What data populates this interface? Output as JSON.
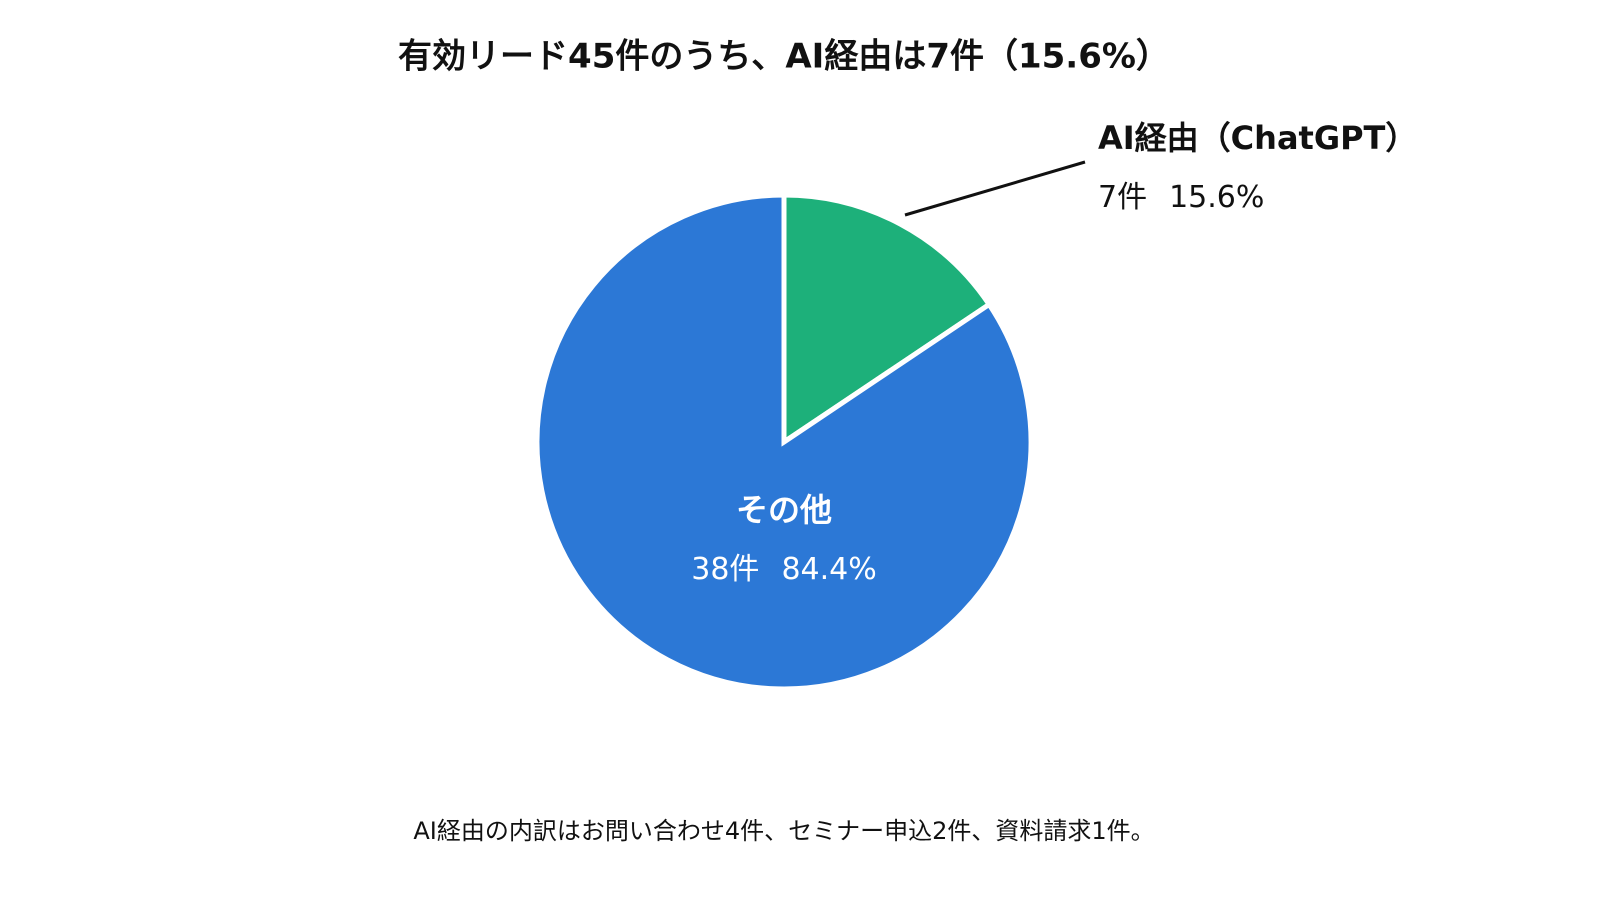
{
  "chart_data": {
    "type": "pie",
    "title": "有効リード45件のうち、AI経由は7件（15.6%）",
    "categories": [
      "AI経由（ChatGPT）",
      "その他"
    ],
    "values": [
      15.6,
      84.4
    ],
    "value_labels": [
      "15.6%",
      "84.4%"
    ],
    "counts": [
      7,
      38
    ],
    "count_labels": [
      "7件",
      "38件"
    ],
    "colors": [
      "#1db07a",
      "#2c78d6"
    ],
    "annotation": "AI経由の内訳はお問い合わせ4件、セミナー申込2件、資料請求1件。"
  }
}
